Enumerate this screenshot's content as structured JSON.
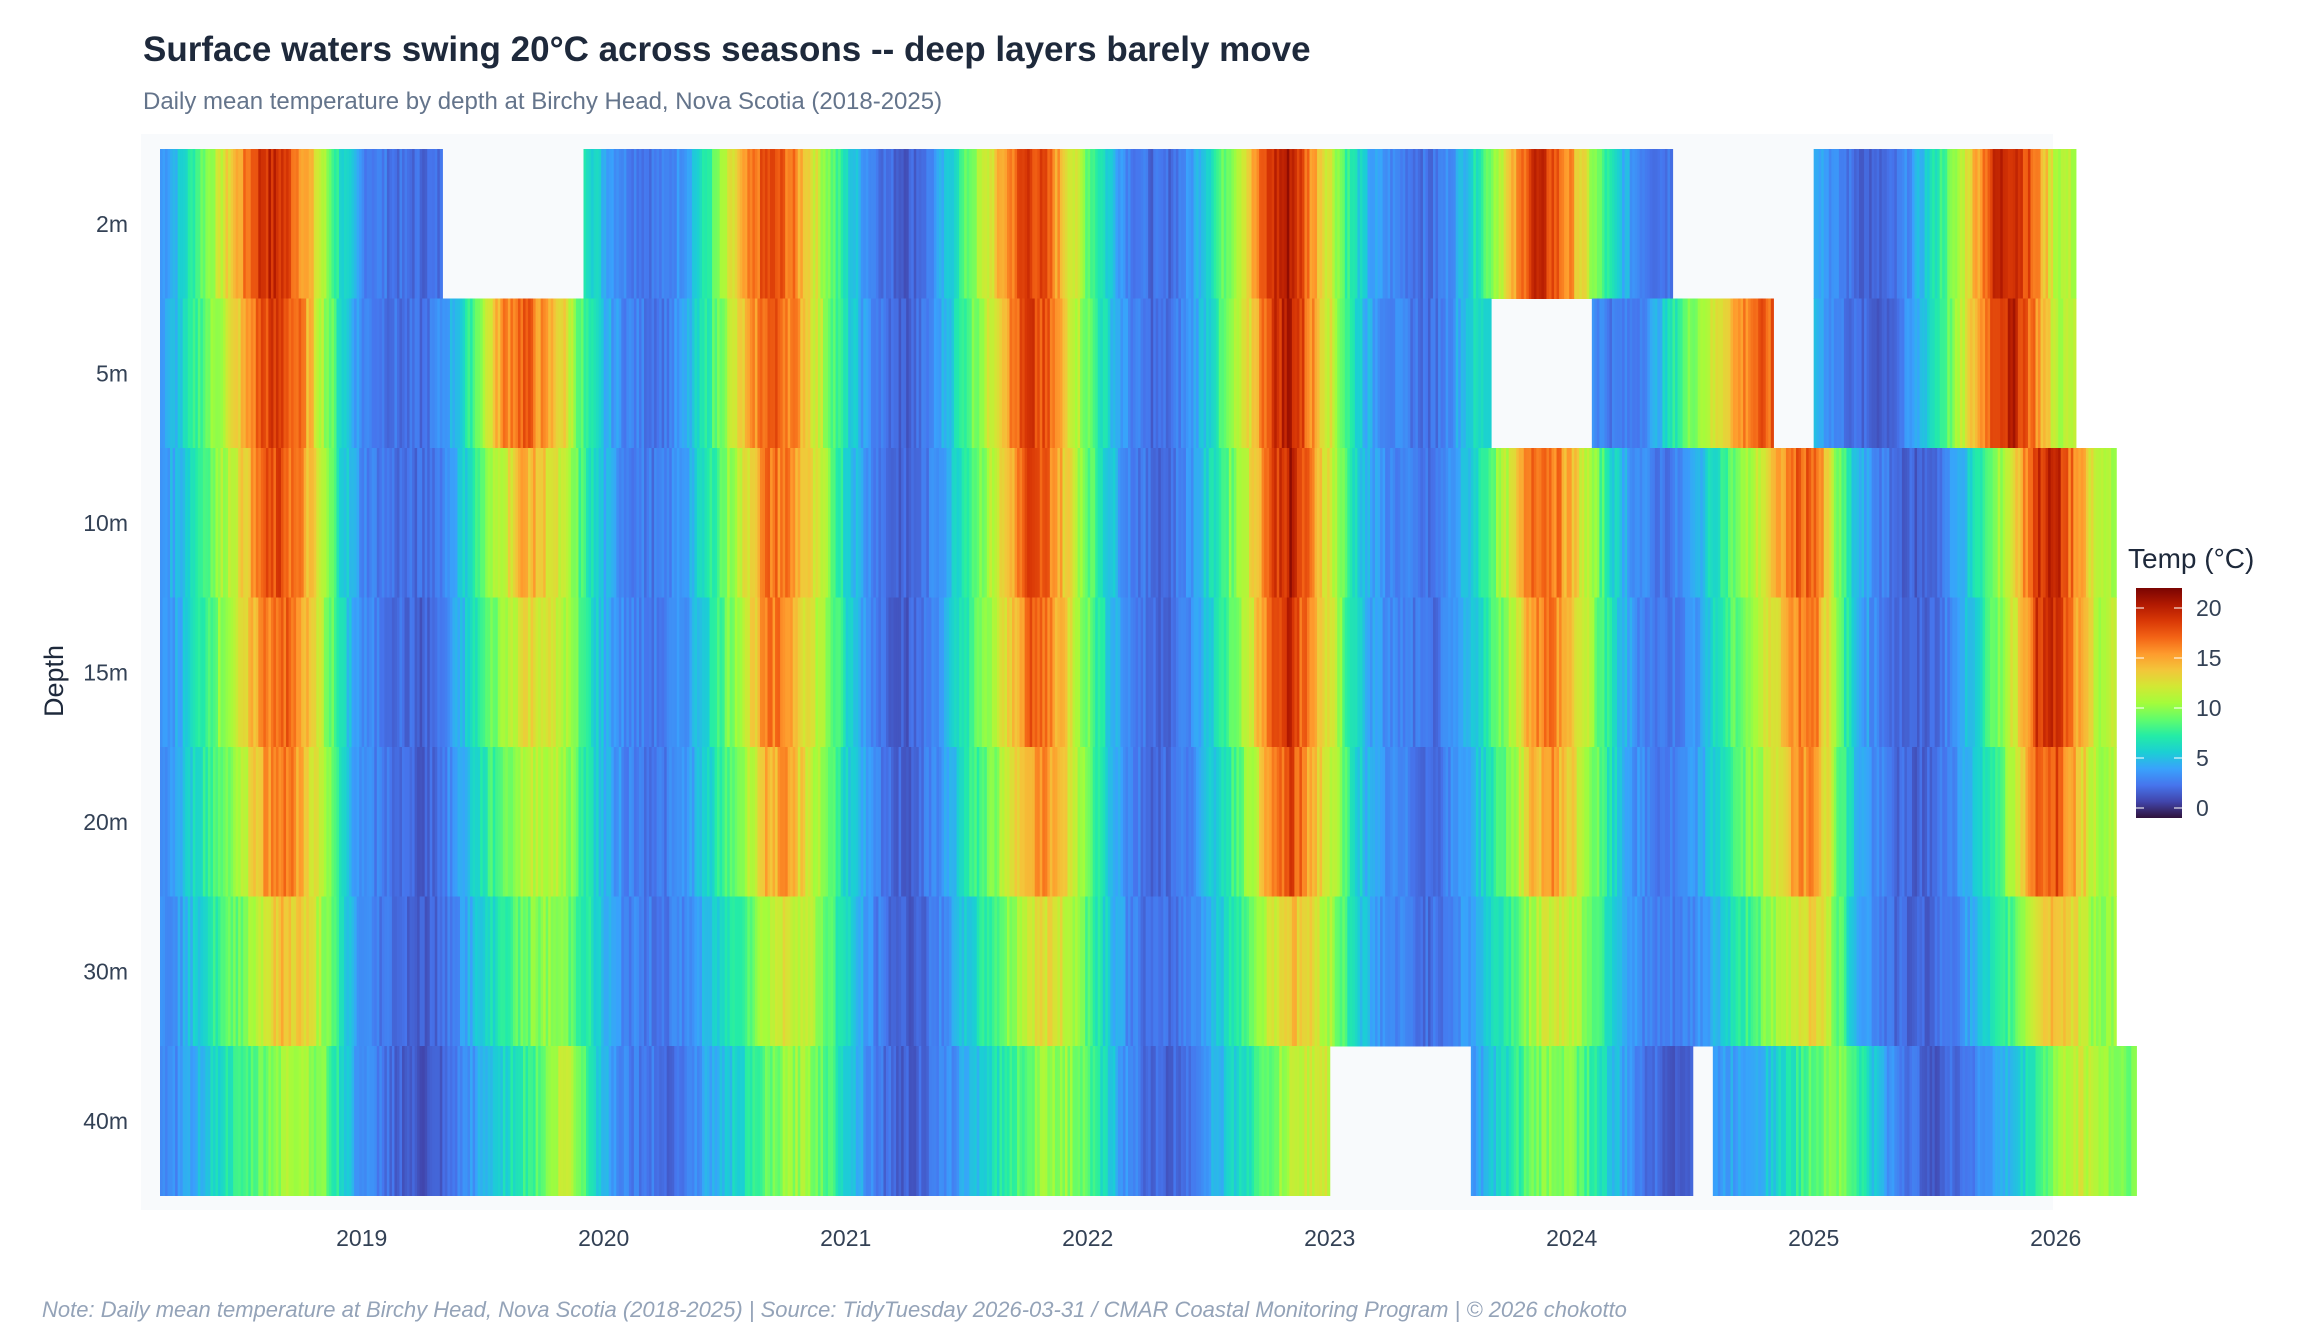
{
  "title": "Surface waters swing 20°C across seasons -- deep layers barely move",
  "subtitle": "Daily mean temperature by depth at Birchy Head, Nova Scotia (2018-2025)",
  "note": "Note: Daily mean temperature at Birchy Head, Nova Scotia (2018-2025)  |  Source: TidyTuesday 2026-03-31 / CMAR Coastal Monitoring Program  |  © 2026 chokotto",
  "colors": {
    "plot_bg": "#f8fafc",
    "colorscale": [
      "#30123b",
      "#4145ab",
      "#4675ed",
      "#39a2fc",
      "#1bcfd4",
      "#24eca6",
      "#61fc6c",
      "#a4fc3b",
      "#d1e834",
      "#f3c63a",
      "#fe9b2d",
      "#f36315",
      "#d93806",
      "#b11901",
      "#7a0402"
    ]
  },
  "chart_data": {
    "type": "heatmap",
    "title": "Surface waters swing 20°C across seasons -- deep layers barely move",
    "subtitle": "Daily mean temperature by depth at Birchy Head, Nova Scotia (2018-2025)",
    "xlabel": "",
    "ylabel": "Depth",
    "x_start": "2018-03",
    "x_end": "2025-11",
    "x_resolution": "monthly (estimated from daily heatmap colors)",
    "x_ticks": [
      "2019",
      "2020",
      "2021",
      "2022",
      "2023",
      "2024",
      "2025",
      "2026"
    ],
    "x_range": [
      "2018-03",
      "2026-01"
    ],
    "depths": [
      "2m",
      "5m",
      "10m",
      "15m",
      "20m",
      "30m",
      "40m"
    ],
    "colorbar": {
      "title": "Temp (°C)",
      "range": [
        -1,
        22
      ],
      "ticks": [
        "0",
        "5",
        "10",
        "15",
        "20"
      ],
      "tick_values": [
        0,
        5,
        10,
        15,
        20
      ],
      "placement": "right"
    },
    "series": [
      {
        "name": "2m",
        "values": [
          3.5,
          5.5,
          9,
          12,
          15.5,
          19.5,
          19,
          16,
          11,
          6,
          3,
          2.5,
          2,
          2,
          null,
          null,
          null,
          null,
          null,
          null,
          null,
          7.5,
          4.5,
          3,
          2.5,
          2.5,
          4,
          7,
          11,
          15,
          18,
          17,
          14,
          10,
          6,
          3.5,
          2,
          1.5,
          2.5,
          5,
          9,
          12,
          16,
          19,
          17,
          13,
          9,
          5.5,
          3,
          2,
          2,
          3.5,
          6.5,
          10,
          14,
          19,
          20.5,
          16,
          12,
          7,
          4,
          3,
          2.5,
          2,
          3.5,
          6,
          10,
          14,
          19.5,
          18,
          15,
          10,
          6,
          3.5,
          2.5,
          null,
          null,
          null,
          null,
          null,
          null,
          null,
          5,
          3,
          2,
          1.5,
          2,
          4,
          7,
          10,
          15,
          19.5,
          20,
          16,
          11
        ]
      },
      {
        "name": "5m",
        "values": [
          3.5,
          5.5,
          8.5,
          11,
          14,
          18,
          18.5,
          16,
          11,
          6,
          3,
          2.5,
          2,
          2,
          3.5,
          6,
          11,
          16,
          17.5,
          15,
          13,
          7.5,
          4.5,
          3,
          2.5,
          2.5,
          4,
          7,
          10.5,
          14,
          17.5,
          17,
          14,
          10,
          6,
          3.5,
          2,
          1.5,
          2.5,
          5,
          8.5,
          11.5,
          15.5,
          18.5,
          17,
          13,
          9,
          5.5,
          3,
          2,
          2,
          3.5,
          6,
          9.5,
          13,
          18.5,
          20.5,
          16,
          12,
          7,
          4,
          3,
          2.5,
          2,
          3.5,
          6,
          null,
          null,
          null,
          null,
          null,
          3.5,
          2.5,
          2.5,
          4,
          7,
          10,
          12,
          15,
          17,
          null,
          null,
          5,
          3,
          2,
          1.5,
          2,
          4,
          7,
          10,
          14.5,
          19,
          19.5,
          16,
          11
        ]
      },
      {
        "name": "10m",
        "values": [
          3.5,
          5,
          8,
          10.5,
          13,
          17,
          18,
          15.5,
          11,
          6,
          3,
          2.5,
          2,
          2,
          3,
          5.5,
          9,
          12,
          15,
          13.5,
          11,
          7.5,
          4.5,
          3,
          2.5,
          2.5,
          4,
          6.5,
          9.5,
          12.5,
          16.5,
          16.5,
          13.5,
          10,
          6,
          3.5,
          2,
          1.5,
          2.5,
          4.5,
          8,
          10.5,
          14,
          18,
          17,
          13,
          9,
          5.5,
          3,
          2,
          2,
          3.5,
          6,
          9,
          12.5,
          18,
          20,
          16,
          12,
          7,
          4,
          3,
          2.5,
          2,
          3.5,
          5.5,
          9,
          12,
          17.5,
          17,
          14,
          10,
          6,
          3.5,
          2.5,
          2.5,
          4,
          6.5,
          9,
          11,
          14,
          17,
          17.5,
          10,
          5,
          3,
          2,
          1.5,
          2,
          4,
          6.5,
          9.5,
          13.5,
          19,
          19.5,
          15.5,
          11
        ]
      },
      {
        "name": "15m",
        "values": [
          3,
          4.5,
          7.5,
          10,
          12,
          16,
          17.5,
          15,
          11,
          6,
          3,
          2.5,
          2,
          1.5,
          2.5,
          5,
          8,
          10.5,
          13,
          12.5,
          11,
          7.5,
          4.5,
          3,
          2.5,
          2.5,
          3.5,
          6,
          9,
          12,
          16,
          16,
          13,
          10,
          6,
          3.5,
          2,
          1.5,
          2.5,
          4.5,
          7.5,
          10,
          13,
          17,
          16.5,
          13,
          9,
          5.5,
          3,
          2,
          2,
          3,
          5.5,
          8.5,
          12,
          17,
          19.5,
          15.5,
          12,
          7,
          4,
          3,
          2.5,
          2,
          3,
          5,
          8,
          11,
          16,
          16.5,
          13.5,
          10,
          6,
          3.5,
          2.5,
          2.5,
          3.5,
          6,
          8.5,
          10.5,
          13,
          16,
          17,
          10,
          5,
          3,
          2,
          1.5,
          2,
          3.5,
          6,
          9,
          13,
          18.5,
          19,
          15,
          11
        ]
      },
      {
        "name": "20m",
        "values": [
          3,
          4.5,
          7,
          9,
          11,
          15,
          17,
          14.5,
          11,
          6,
          3,
          2.5,
          2,
          1.5,
          2.5,
          4.5,
          7,
          9,
          11,
          11.5,
          10.5,
          7.5,
          4.5,
          3,
          2.5,
          2.5,
          3.5,
          5.5,
          8,
          10.5,
          14.5,
          15,
          12.5,
          9.5,
          6,
          3.5,
          2,
          1.5,
          2.5,
          4,
          7,
          9,
          11.5,
          15.5,
          15.5,
          12.5,
          9,
          5.5,
          3,
          2,
          2,
          3,
          5,
          7.5,
          10.5,
          15.5,
          18,
          15,
          11.5,
          7,
          4,
          3,
          2.5,
          2,
          3,
          4.5,
          7,
          10,
          14,
          15.5,
          13,
          9.5,
          6,
          3.5,
          2.5,
          2.5,
          3.5,
          5.5,
          8,
          10,
          12,
          15,
          16.5,
          10,
          5,
          3,
          2,
          1.5,
          2,
          3.5,
          5.5,
          8,
          11.5,
          17,
          18,
          14.5,
          11
        ]
      },
      {
        "name": "30m",
        "values": [
          3,
          4,
          6,
          8,
          9.5,
          12,
          14,
          13.5,
          10.5,
          6,
          3,
          2.5,
          2,
          1.5,
          2,
          4,
          5.5,
          7.5,
          9,
          10,
          9.5,
          7.5,
          4.5,
          3,
          2.5,
          2.5,
          3,
          4.5,
          6.5,
          8.5,
          11,
          12.5,
          11.5,
          9,
          6,
          3.5,
          2,
          1.5,
          2,
          3.5,
          5.5,
          7.5,
          9.5,
          12,
          13,
          11.5,
          8.5,
          5.5,
          3,
          2,
          2,
          3,
          4.5,
          6.5,
          9,
          12,
          14,
          13,
          10.5,
          7,
          4,
          3,
          2.5,
          2,
          3,
          4,
          6,
          8,
          10.5,
          12.5,
          11.5,
          9,
          6,
          3.5,
          2.5,
          2.5,
          3,
          4.5,
          6.5,
          8.5,
          10,
          12,
          14,
          9.5,
          5,
          3,
          2,
          1.5,
          2,
          3,
          4.5,
          6.5,
          9,
          13,
          14.5,
          12.5,
          10
        ]
      },
      {
        "name": "40m",
        "values": [
          2.5,
          3.5,
          5,
          6.5,
          7.5,
          9,
          10.5,
          11,
          9.5,
          6,
          3,
          2.5,
          1.5,
          1,
          1.5,
          3,
          4.5,
          6,
          7.5,
          9,
          12,
          8.5,
          4.5,
          3,
          2.5,
          2,
          2.5,
          4,
          5,
          6.5,
          8.5,
          10,
          10.5,
          8.5,
          6,
          3.5,
          2,
          1.5,
          2,
          3,
          4.5,
          6,
          7.5,
          9,
          10.5,
          10,
          8,
          5.5,
          3,
          2,
          1.5,
          2.5,
          4,
          5.5,
          7,
          9,
          11,
          12,
          null,
          null,
          null,
          null,
          null,
          null,
          null,
          3.5,
          5,
          7,
          9,
          10,
          9.5,
          7.5,
          5,
          3,
          2,
          1.5,
          null,
          3.5,
          4,
          4.5,
          5.5,
          7,
          9,
          10,
          8,
          5,
          3,
          2,
          1.5,
          2,
          3,
          4,
          5,
          7.5,
          10,
          12,
          11,
          9.5
        ]
      }
    ]
  }
}
